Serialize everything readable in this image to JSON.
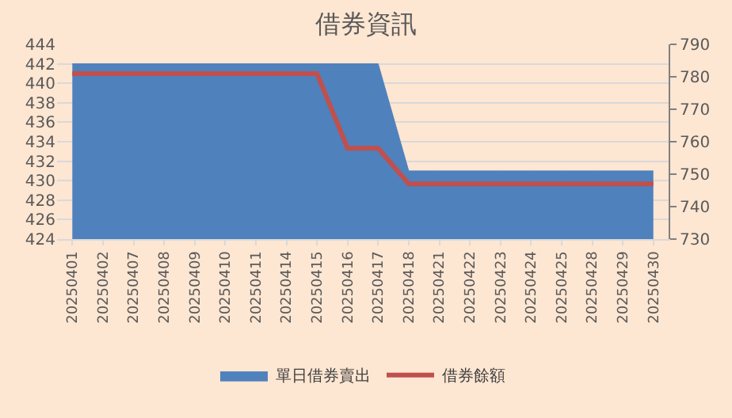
{
  "chart_data": {
    "type": "area",
    "title": "借券資訊",
    "categories": [
      "20250401",
      "20250402",
      "20250407",
      "20250408",
      "20250409",
      "20250410",
      "20250411",
      "20250414",
      "20250415",
      "20250416",
      "20250417",
      "20250418",
      "20250421",
      "20250422",
      "20250423",
      "20250424",
      "20250425",
      "20250428",
      "20250429",
      "20250430"
    ],
    "series": [
      {
        "name": "單日借券賣出",
        "color": "#4f81bd",
        "values": [
          442,
          442,
          442,
          442,
          442,
          442,
          442,
          442,
          442,
          442,
          442,
          431,
          431,
          431,
          431,
          431,
          431,
          431,
          431,
          431
        ]
      },
      {
        "name": "借券餘額",
        "type": "line",
        "axis": "y2",
        "color": "#c0504d",
        "values": [
          781,
          781,
          781,
          781,
          781,
          781,
          781,
          781,
          781,
          758,
          758,
          747,
          747,
          747,
          747,
          747,
          747,
          747,
          747,
          747
        ]
      }
    ],
    "ylim": [
      424,
      444
    ],
    "yticks": [
      424,
      426,
      428,
      430,
      432,
      434,
      436,
      438,
      440,
      442,
      444
    ],
    "y2lim": [
      730,
      790
    ],
    "y2ticks": [
      730,
      740,
      750,
      760,
      770,
      780,
      790
    ],
    "grid": "y",
    "legend": "bottom",
    "marker": "none",
    "line_style": "solid"
  }
}
